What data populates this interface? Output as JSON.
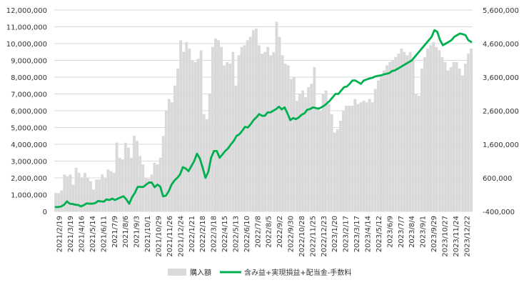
{
  "chart_data": {
    "type": "bar",
    "title": "",
    "xlabel": "",
    "ylabel": "",
    "legend_position": "bottom",
    "grid": true,
    "colors": {
      "bar": "#d9d9d9",
      "line": "#00b050",
      "negative_tick": "#ff0000",
      "grid": "#d9d9d9",
      "text": "#333333"
    },
    "y_left": {
      "min": 0,
      "max": 12000000,
      "step": 1000000,
      "tick_labels": [
        "0",
        "1,000,000",
        "2,000,000",
        "3,000,000",
        "4,000,000",
        "5,000,000",
        "6,000,000",
        "7,000,000",
        "8,000,000",
        "9,000,000",
        "10,000,000",
        "11,000,000",
        "12,000,000"
      ]
    },
    "y_right": {
      "min": -400000,
      "max": 5600000,
      "step": 1000000,
      "tick_labels": [
        "-400,000",
        "600,000",
        "1,600,000",
        "2,600,000",
        "3,600,000",
        "4,600,000",
        "5,600,000"
      ]
    },
    "x_tick_labels": [
      "2021/2/19",
      "2021/3/19",
      "2021/4/16",
      "2021/5/14",
      "2021/6/11",
      "2021/7/9",
      "2021/8/6",
      "2021/9/3",
      "2021/10/1",
      "2021/10/29",
      "2021/11/26",
      "2021/12/24",
      "2022/1/21",
      "2022/2/18",
      "2022/3/18",
      "2022/4/15",
      "2022/5/13",
      "2022/6/10",
      "2022/7/8",
      "2022/8/5",
      "2022/9/2",
      "2022/9/30",
      "2022/10/28",
      "2022/11/25",
      "2022/12/23",
      "2023/1/20",
      "2023/2/17",
      "2023/3/17",
      "2023/4/14",
      "2023/5/12",
      "2023/6/9",
      "2023/7/7",
      "2023/8/4",
      "2023/9/1",
      "2023/9/29",
      "2023/10/27",
      "2023/11/24",
      "2023/12/22"
    ],
    "series": [
      {
        "name": "購入額",
        "type": "bar",
        "axis": "left",
        "values": [
          1100000,
          1100000,
          1250000,
          2200000,
          2100000,
          2200000,
          1600000,
          2600000,
          2300000,
          2000000,
          2300000,
          2000000,
          1800000,
          1300000,
          1900000,
          1900000,
          2200000,
          2000000,
          2500000,
          2400000,
          2300000,
          4100000,
          3200000,
          3100000,
          4100000,
          3800000,
          3200000,
          4500000,
          4200000,
          3300000,
          2800000,
          2000000,
          1950000,
          2200000,
          2900000,
          2800000,
          3200000,
          4500000,
          6000000,
          6700000,
          6500000,
          7500000,
          8500000,
          10200000,
          9500000,
          10100000,
          9700000,
          9000000,
          8900000,
          9100000,
          9600000,
          5800000,
          5500000,
          7000000,
          9800000,
          10300000,
          10200000,
          9800000,
          8700000,
          8900000,
          8800000,
          9500000,
          7500000,
          9300000,
          9800000,
          9900000,
          10200000,
          10400000,
          10800000,
          10900000,
          9900000,
          9400000,
          9500000,
          9800000,
          9300000,
          9500000,
          11300000,
          10400000,
          9300000,
          8800000,
          8700000,
          7900000,
          8000000,
          6600000,
          7000000,
          7200000,
          6800000,
          7400000,
          7600000,
          8600000,
          6200000,
          6000000,
          7000000,
          7200000,
          6400000,
          5800000,
          4700000,
          4900000,
          5400000,
          6000000,
          6300000,
          6300000,
          6300000,
          6700000,
          6400000,
          6500000,
          6600000,
          6500000,
          6700000,
          6500000,
          7300000,
          7800000,
          8100000,
          8400000,
          8700000,
          8900000,
          9000000,
          9200000,
          9400000,
          9700000,
          9500000,
          9300000,
          9500000,
          9000000,
          7000000,
          6900000,
          8500000,
          9200000,
          9700000,
          9900000,
          10100000,
          9800000,
          9600000,
          9200000,
          8900000,
          8400000,
          8600000,
          8900000,
          8900000,
          8500000,
          8100000,
          8800000,
          9400000,
          9700000
        ]
      },
      {
        "name": "含み益+実現損益+配当金-手数料",
        "type": "line",
        "axis": "right",
        "values": [
          -270000,
          -270000,
          -250000,
          -200000,
          -100000,
          -170000,
          -180000,
          -200000,
          -210000,
          -250000,
          -210000,
          -160000,
          -170000,
          -170000,
          -150000,
          -90000,
          -100000,
          -110000,
          -40000,
          -60000,
          -20000,
          -60000,
          -20000,
          20000,
          50000,
          -40000,
          -170000,
          20000,
          150000,
          330000,
          330000,
          330000,
          400000,
          460000,
          460000,
          320000,
          400000,
          340000,
          50000,
          70000,
          200000,
          400000,
          520000,
          600000,
          700000,
          920000,
          880000,
          800000,
          950000,
          1100000,
          1320000,
          1180000,
          900000,
          600000,
          780000,
          1200000,
          1400000,
          1400000,
          1200000,
          1300000,
          1400000,
          1480000,
          1600000,
          1700000,
          1850000,
          1900000,
          2000000,
          2120000,
          2100000,
          2200000,
          2320000,
          2400000,
          2500000,
          2450000,
          2450000,
          2550000,
          2550000,
          2600000,
          2650000,
          2720000,
          2640000,
          2700000,
          2520000,
          2320000,
          2380000,
          2350000,
          2400000,
          2480000,
          2520000,
          2630000,
          2650000,
          2700000,
          2680000,
          2660000,
          2700000,
          2750000,
          2820000,
          2900000,
          3000000,
          3100000,
          3100000,
          3200000,
          3300000,
          3320000,
          3400000,
          3500000,
          3500000,
          3450000,
          3400000,
          3500000,
          3530000,
          3560000,
          3580000,
          3620000,
          3640000,
          3650000,
          3680000,
          3700000,
          3720000,
          3780000,
          3800000,
          3850000,
          3900000,
          3950000,
          4000000,
          4050000,
          4100000,
          4200000,
          4300000,
          4400000,
          4500000,
          4600000,
          4700000,
          4800000,
          5000000,
          4950000,
          4700000,
          4550000,
          4600000,
          4650000,
          4700000,
          4800000,
          4850000,
          4900000,
          4880000,
          4850000,
          4700000,
          4650000
        ]
      }
    ]
  }
}
